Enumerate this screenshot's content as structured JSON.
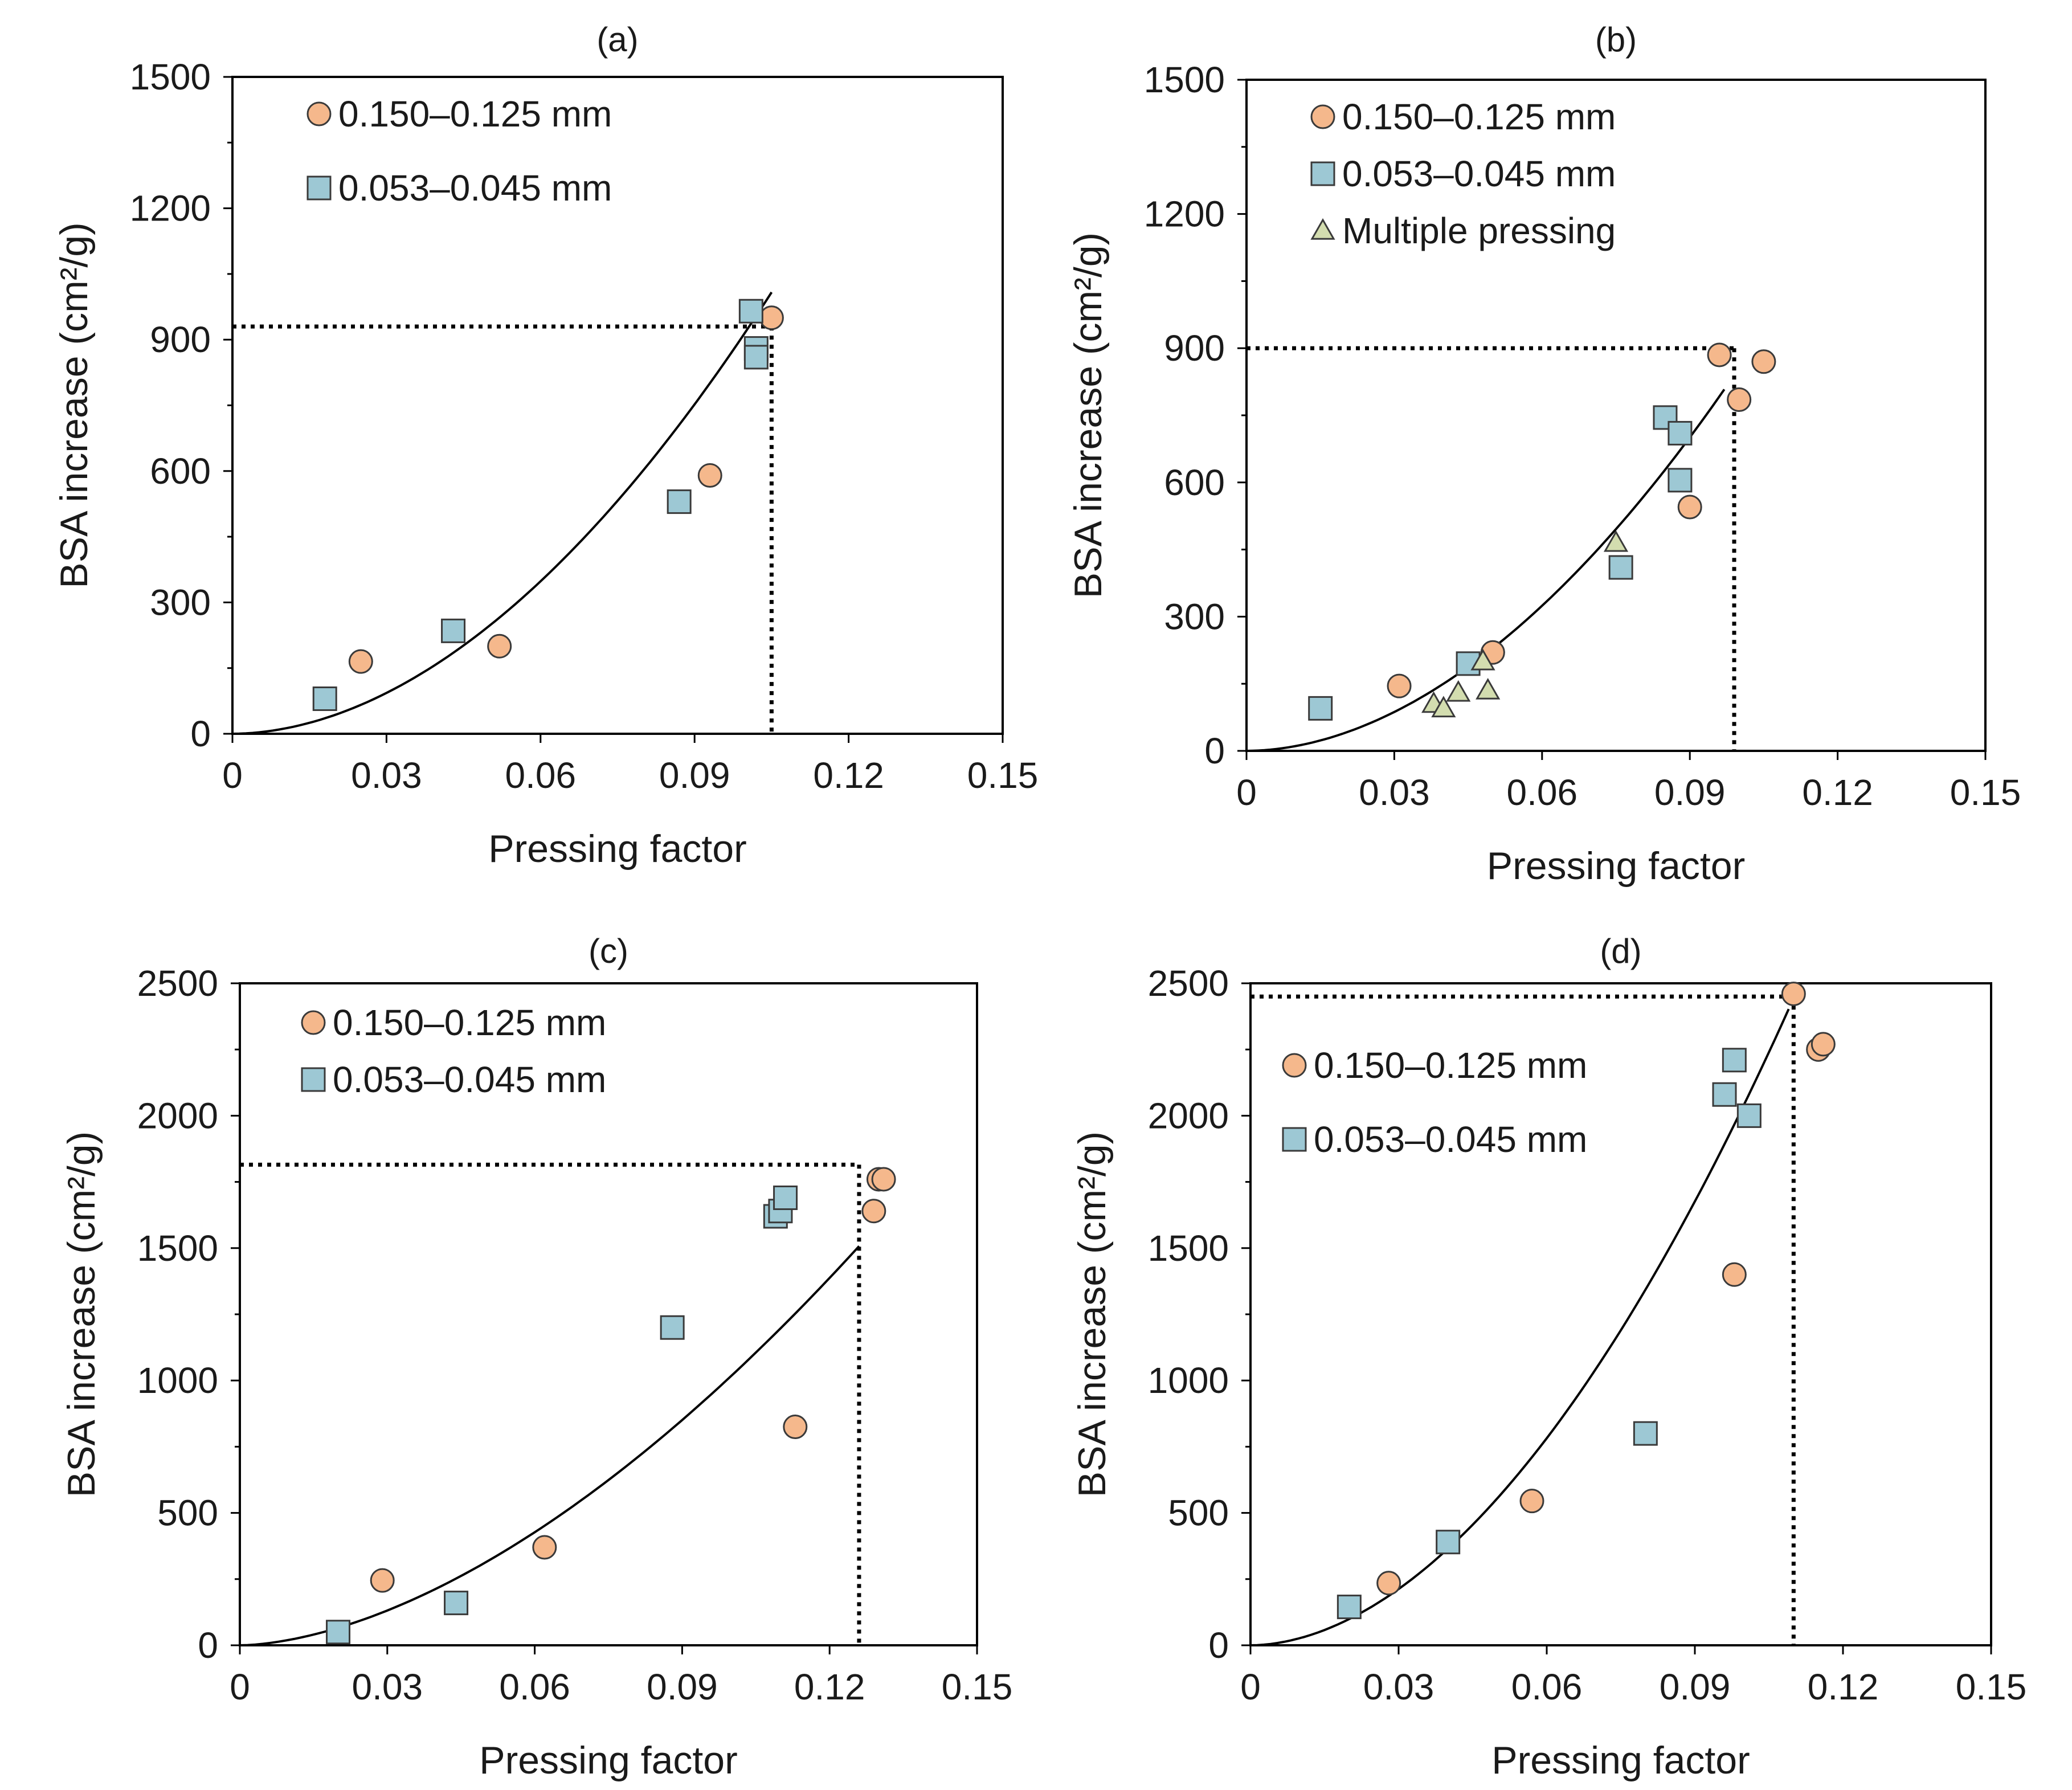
{
  "colors": {
    "circle_fill": "#F5B88C",
    "square_fill": "#9DC8D4",
    "triangle_fill": "#D3DDAF",
    "marker_stroke": "#3a3a3a"
  },
  "chart_data": [
    {
      "panel": "(a)",
      "type": "scatter",
      "title": "(a)",
      "xlabel": "Pressing factor",
      "ylabel": "BSA increase (cm²/g)",
      "xlim": [
        0,
        0.15
      ],
      "ylim": [
        0,
        1500
      ],
      "x_ticks": [
        "0",
        "0.03",
        "0.06",
        "0.09",
        "0.12",
        "0.15"
      ],
      "y_ticks": [
        "0",
        "300",
        "600",
        "900",
        "1200",
        "1500"
      ],
      "legend_position": "top-left",
      "series": [
        {
          "name": "0.150–0.125 mm",
          "marker": "circle",
          "points": [
            [
              0.025,
              165
            ],
            [
              0.052,
              200
            ],
            [
              0.093,
              590
            ],
            [
              0.105,
              950
            ]
          ]
        },
        {
          "name": "0.053–0.045 mm",
          "marker": "square",
          "points": [
            [
              0.018,
              80
            ],
            [
              0.043,
              235
            ],
            [
              0.087,
              530
            ],
            [
              0.101,
              965
            ],
            [
              0.102,
              880
            ],
            [
              0.102,
              860
            ]
          ]
        }
      ],
      "fit": {
        "type": "power",
        "coefficient": 73000,
        "exponent": 1.9,
        "x_range": [
          0,
          0.105
        ]
      },
      "reference": {
        "x": 0.105,
        "y": 930
      }
    },
    {
      "panel": "(b)",
      "type": "scatter",
      "title": "(b)",
      "xlabel": "Pressing factor",
      "ylabel": "BSA increase (cm²/g)",
      "xlim": [
        0,
        0.15
      ],
      "ylim": [
        0,
        1500
      ],
      "x_ticks": [
        "0",
        "0.03",
        "0.06",
        "0.09",
        "0.12",
        "0.15"
      ],
      "y_ticks": [
        "0",
        "300",
        "600",
        "900",
        "1200",
        "1500"
      ],
      "legend_position": "top-left",
      "series": [
        {
          "name": "0.150–0.125 mm",
          "marker": "circle",
          "points": [
            [
              0.031,
              145
            ],
            [
              0.05,
              220
            ],
            [
              0.09,
              545
            ],
            [
              0.096,
              885
            ],
            [
              0.1,
              785
            ],
            [
              0.105,
              870
            ]
          ]
        },
        {
          "name": "0.053–0.045 mm",
          "marker": "square",
          "points": [
            [
              0.015,
              95
            ],
            [
              0.045,
              195
            ],
            [
              0.076,
              410
            ],
            [
              0.085,
              745
            ],
            [
              0.088,
              710
            ],
            [
              0.088,
              605
            ]
          ]
        },
        {
          "name": "Multiple pressing",
          "marker": "triangle",
          "points": [
            [
              0.038,
              105
            ],
            [
              0.04,
              95
            ],
            [
              0.043,
              130
            ],
            [
              0.048,
              200
            ],
            [
              0.049,
              135
            ],
            [
              0.075,
              465
            ]
          ]
        }
      ],
      "fit": {
        "type": "power",
        "coefficient": 68000,
        "exponent": 1.9,
        "x_range": [
          0,
          0.097
        ]
      },
      "reference": {
        "x": 0.099,
        "y": 900
      }
    },
    {
      "panel": "(c)",
      "type": "scatter",
      "title": "(c)",
      "xlabel": "Pressing factor",
      "ylabel": "BSA increase (cm²/g)",
      "xlim": [
        0,
        0.15
      ],
      "ylim": [
        0,
        2500
      ],
      "x_ticks": [
        "0",
        "0.03",
        "0.06",
        "0.09",
        "0.12",
        "0.15"
      ],
      "y_ticks": [
        "0",
        "500",
        "1000",
        "1500",
        "2000",
        "2500"
      ],
      "legend_position": "top-left",
      "series": [
        {
          "name": "0.150–0.125 mm",
          "marker": "circle",
          "points": [
            [
              0.029,
              245
            ],
            [
              0.062,
              370
            ],
            [
              0.113,
              825
            ],
            [
              0.129,
              1640
            ],
            [
              0.13,
              1760
            ],
            [
              0.131,
              1760
            ]
          ]
        },
        {
          "name": "0.053–0.045 mm",
          "marker": "square",
          "points": [
            [
              0.02,
              50
            ],
            [
              0.044,
              160
            ],
            [
              0.088,
              1200
            ],
            [
              0.109,
              1620
            ],
            [
              0.11,
              1640
            ],
            [
              0.111,
              1690
            ]
          ]
        }
      ],
      "fit": {
        "type": "power",
        "coefficient": 51000,
        "exponent": 1.7,
        "x_range": [
          0,
          0.126
        ]
      },
      "reference": {
        "x": 0.126,
        "y": 1815
      }
    },
    {
      "panel": "(d)",
      "type": "scatter",
      "title": "(d)",
      "xlabel": "Pressing factor",
      "ylabel": "BSA increase (cm²/g)",
      "xlim": [
        0,
        0.15
      ],
      "ylim": [
        0,
        2500
      ],
      "x_ticks": [
        "0",
        "0.03",
        "0.06",
        "0.09",
        "0.12",
        "0.15"
      ],
      "y_ticks": [
        "0",
        "500",
        "1000",
        "1500",
        "2000",
        "2500"
      ],
      "legend_position": "top-left",
      "series": [
        {
          "name": "0.150–0.125 mm",
          "marker": "circle",
          "points": [
            [
              0.028,
              235
            ],
            [
              0.057,
              545
            ],
            [
              0.098,
              1400
            ],
            [
              0.11,
              2460
            ],
            [
              0.115,
              2250
            ],
            [
              0.116,
              2270
            ]
          ]
        },
        {
          "name": "0.053–0.045 mm",
          "marker": "square",
          "points": [
            [
              0.02,
              145
            ],
            [
              0.04,
              390
            ],
            [
              0.08,
              800
            ],
            [
              0.096,
              2080
            ],
            [
              0.098,
              2210
            ],
            [
              0.101,
              2000
            ]
          ]
        }
      ],
      "fit": {
        "type": "power",
        "coefficient": 155000,
        "exponent": 1.88,
        "x_range": [
          0,
          0.109
        ]
      },
      "reference": {
        "x": 0.11,
        "y": 2450
      }
    }
  ]
}
